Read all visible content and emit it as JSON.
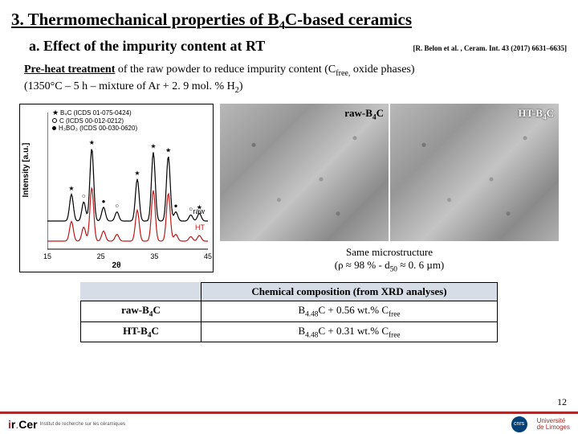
{
  "title_prefix": "3. Thermomechanical properties of B",
  "title_sub1": "4",
  "title_suffix": "C-based ceramics",
  "subtitle": "a. Effect of the impurity content at RT",
  "citation": "[R. Belon et al. , Ceram. Int. 43 (2017) 6631–6635]",
  "desc_pre": "Pre-heat treatment",
  "desc_line1_rest": " of the raw powder to reduce impurity content (C",
  "desc_sub1": "free,",
  "desc_line1_tail": " oxide phases)",
  "desc_line2_a": "(1350°C – 5 h – mixture of Ar + 2. 9 mol. % H",
  "desc_line2_sub": "2",
  "desc_line2_b": ")",
  "xrd": {
    "ylabel": "Intensity [a.u.]",
    "xlabel": "2θ",
    "xmin": 15,
    "xmax": 45,
    "xticks": [
      15,
      25,
      35,
      45
    ],
    "legend": [
      {
        "sym": "star",
        "text": "B₄C (ICDS 01-075-0424)"
      },
      {
        "sym": "circ",
        "text": "C (ICDS 00-012-0212)"
      },
      {
        "sym": "dot",
        "text": "H₃BO₃ (ICDS 00-030-0620)"
      }
    ],
    "trace_raw_label": "raw",
    "trace_ht_label": "HT",
    "raw_color": "#000000",
    "ht_color": "#c01818",
    "peaks": [
      {
        "x": 19.5,
        "h": 0.35,
        "sym": "star"
      },
      {
        "x": 21.8,
        "h": 0.25,
        "sym": "circ"
      },
      {
        "x": 23.3,
        "h": 0.95,
        "sym": "star"
      },
      {
        "x": 25.5,
        "h": 0.18,
        "sym": "dot"
      },
      {
        "x": 28.0,
        "h": 0.12,
        "sym": "circ"
      },
      {
        "x": 31.8,
        "h": 0.55,
        "sym": "star"
      },
      {
        "x": 34.8,
        "h": 0.9,
        "sym": "star"
      },
      {
        "x": 37.6,
        "h": 0.85,
        "sym": "star"
      },
      {
        "x": 39.0,
        "h": 0.12,
        "sym": "dot"
      },
      {
        "x": 41.8,
        "h": 0.08,
        "sym": "circ"
      },
      {
        "x": 43.4,
        "h": 0.1,
        "sym": "star"
      }
    ]
  },
  "micro": {
    "left_label_a": "raw-B",
    "left_label_sub": "4",
    "left_label_b": "C",
    "right_label_a": "HT-B",
    "right_label_sub": "4",
    "right_label_b": "C",
    "caption_a": "Same microstructure",
    "caption_b_1": "(ρ ≈ 98 % - d",
    "caption_b_sub": "50",
    "caption_b_2": " ≈ 0. 6 µm)"
  },
  "table": {
    "header": "Chemical composition (from XRD analyses)",
    "rows": [
      {
        "label_a": "raw-B",
        "label_sub": "4",
        "label_b": "C",
        "val_a": "B",
        "val_sub1": "4.48",
        "val_b": "C + 0.56 wt.% C",
        "val_sub2": "free"
      },
      {
        "label_a": "HT-B",
        "label_sub": "4",
        "label_b": "C",
        "val_a": "B",
        "val_sub1": "4.48",
        "val_b": "C + 0.31 wt.% C",
        "val_sub2": "free"
      }
    ]
  },
  "pagenum": "12",
  "footer": {
    "ircer_i": "i",
    "ircer_r": "r",
    "ircer_rest": "Cer",
    "ircer_sub": "Institut de recherche sur les céramiques",
    "cnrs": "cnrs",
    "ul1": "Université",
    "ul2": "de Limoges"
  }
}
